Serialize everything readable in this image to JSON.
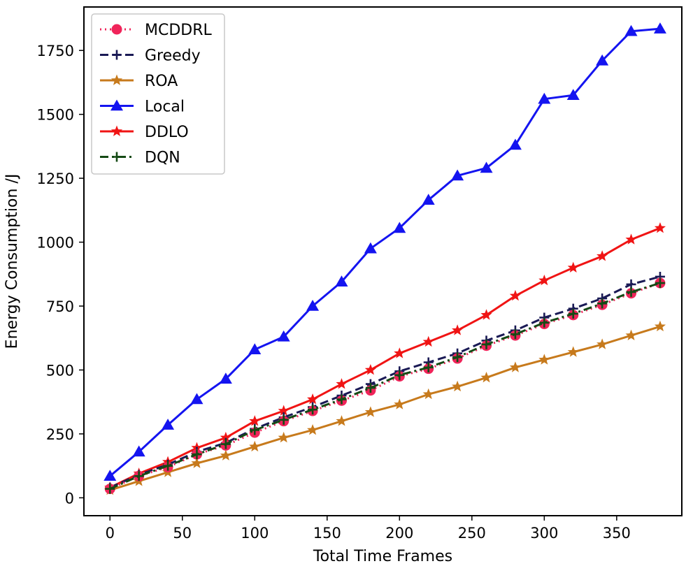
{
  "chart_data": {
    "type": "line",
    "title": "",
    "xlabel": "Total Time Frames",
    "ylabel": "Energy Consumption /J",
    "xlim": [
      -18,
      395
    ],
    "ylim": [
      -70,
      1920
    ],
    "xticks": [
      0,
      50,
      100,
      150,
      200,
      250,
      300,
      350
    ],
    "yticks": [
      0,
      250,
      500,
      750,
      1000,
      1250,
      1500,
      1750
    ],
    "grid": false,
    "legend_position": "top-left",
    "x": [
      0,
      20,
      40,
      60,
      80,
      100,
      120,
      140,
      160,
      180,
      200,
      220,
      240,
      260,
      280,
      300,
      320,
      340,
      360,
      380
    ],
    "series": [
      {
        "name": "MCDDRL",
        "color": "#f0245a",
        "marker": "circle",
        "linestyle": "dotted",
        "values": [
          35,
          85,
          120,
          170,
          205,
          255,
          300,
          340,
          380,
          420,
          475,
          505,
          545,
          595,
          635,
          680,
          715,
          755,
          800,
          840
        ]
      },
      {
        "name": "Greedy",
        "color": "#1a1a55",
        "marker": "plus",
        "linestyle": "dashed",
        "values": [
          40,
          90,
          130,
          180,
          215,
          270,
          315,
          355,
          400,
          445,
          495,
          530,
          565,
          615,
          655,
          705,
          740,
          780,
          835,
          865
        ]
      },
      {
        "name": "ROA",
        "color": "#c77a1c",
        "marker": "star",
        "linestyle": "solid",
        "values": [
          30,
          65,
          100,
          135,
          165,
          200,
          235,
          265,
          300,
          335,
          365,
          405,
          435,
          470,
          510,
          540,
          570,
          600,
          635,
          670
        ]
      },
      {
        "name": "Local",
        "color": "#1414f0",
        "marker": "triangle",
        "linestyle": "solid",
        "values": [
          85,
          180,
          285,
          385,
          465,
          580,
          630,
          750,
          845,
          975,
          1055,
          1165,
          1260,
          1290,
          1380,
          1560,
          1575,
          1710,
          1825,
          1835
        ]
      },
      {
        "name": "DDLO",
        "color": "#f01414",
        "marker": "star",
        "linestyle": "solid",
        "values": [
          40,
          95,
          140,
          195,
          235,
          300,
          340,
          385,
          445,
          500,
          565,
          610,
          655,
          715,
          790,
          850,
          900,
          945,
          1010,
          1055
        ]
      },
      {
        "name": "DQN",
        "color": "#154a15",
        "marker": "plus",
        "linestyle": "dashdot",
        "values": [
          35,
          85,
          125,
          170,
          210,
          265,
          305,
          345,
          385,
          430,
          480,
          510,
          550,
          600,
          640,
          685,
          720,
          760,
          805,
          840
        ]
      }
    ]
  }
}
